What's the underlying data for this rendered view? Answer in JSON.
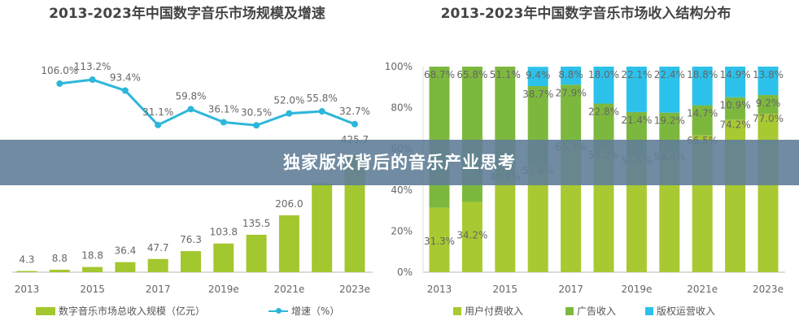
{
  "banner": {
    "text": "独家版权背后的音乐产业思考"
  },
  "chart_data": [
    {
      "type": "bar+line",
      "title": "2013-2023年中国数字音乐市场规模及增速",
      "categories": [
        "2013",
        "2014",
        "2015",
        "2016",
        "2017",
        "2018",
        "2019e",
        "2020e",
        "2021e",
        "2022e",
        "2023e"
      ],
      "tick_labels": [
        "2013",
        "2015",
        "2017",
        "2019e",
        "2021e",
        "2023e"
      ],
      "series": [
        {
          "name": "数字音乐市场总收入规模（亿元）",
          "type": "bar",
          "color": "#a3c72e",
          "values": [
            4.3,
            8.8,
            18.8,
            36.4,
            47.7,
            76.3,
            103.8,
            135.5,
            206.0,
            320.8,
            425.7
          ],
          "labels": [
            "4.3",
            "8.8",
            "18.8",
            "36.4",
            "47.7",
            "76.3",
            "103.8",
            "135.5",
            "206.0",
            "",
            "425.7"
          ]
        },
        {
          "name": "增速（%）",
          "type": "line",
          "color": "#2cb7d9",
          "values": [
            null,
            106.0,
            113.2,
            93.4,
            31.1,
            59.8,
            36.1,
            30.5,
            52.0,
            55.8,
            32.7
          ],
          "labels": [
            "",
            "106.0%",
            "113.2%",
            "93.4%",
            "31.1%",
            "59.8%",
            "36.1%",
            "30.5%",
            "52.0%",
            "55.8%",
            "32.7%"
          ]
        }
      ]
    },
    {
      "type": "stacked-bar",
      "title": "2013-2023年中国数字音乐市场收入结构分布",
      "categories": [
        "2013",
        "2014",
        "2015",
        "2016",
        "2017",
        "2018",
        "2019e",
        "2020e",
        "2021e",
        "2022e",
        "2023e"
      ],
      "tick_labels": [
        "2013",
        "2015",
        "2017",
        "2019e",
        "2021e",
        "2023e"
      ],
      "y_ticks": [
        "0%",
        "20%",
        "40%",
        "60%",
        "80%",
        "100%"
      ],
      "ylim": [
        0,
        100
      ],
      "series": [
        {
          "name": "用户付费收入",
          "color": "#a8c932",
          "values": [
            31.3,
            34.2,
            48.9,
            51.8,
            63.3,
            59.2,
            56.5,
            58.4,
            66.5,
            74.2,
            77.0
          ]
        },
        {
          "name": "广告收入",
          "color": "#7db83e",
          "values": [
            68.7,
            65.8,
            51.1,
            38.7,
            27.9,
            22.8,
            21.4,
            19.2,
            14.7,
            10.9,
            9.2
          ]
        },
        {
          "name": "版权运营收入",
          "color": "#2cc1ea",
          "values": [
            0,
            0,
            0,
            9.4,
            8.8,
            18.0,
            22.1,
            22.4,
            18.8,
            14.9,
            13.8
          ]
        }
      ]
    }
  ]
}
